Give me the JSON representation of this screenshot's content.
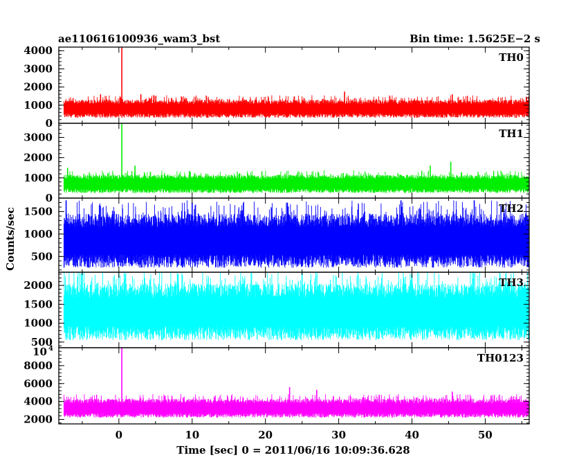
{
  "header": {
    "left": "ae110616100936_wam3_bst",
    "right": "Bin time: 1.5625E−2 s"
  },
  "ylabel": "Counts/sec",
  "xlabel": "Time [sec] 0 = 2011/06/16 10:09:36.628",
  "chart_data": {
    "type": "line",
    "x": {
      "min": -8.2,
      "max": 56.0,
      "ticks": [
        0,
        10,
        20,
        30,
        40,
        50
      ],
      "data_start": -7.5,
      "data_end": 56.0
    },
    "panels": [
      {
        "name": "TH0",
        "color": "#ff0000",
        "ylim": [
          0,
          4200
        ],
        "ticks": [
          0,
          1000,
          2000,
          3000,
          4000
        ],
        "baseline": 800,
        "low": 300,
        "high": 1300,
        "spikes": [
          [
            0.4,
            4200
          ],
          [
            3.0,
            1600
          ],
          [
            -2.5,
            1600
          ],
          [
            30.8,
            1750
          ],
          [
            45.5,
            1600
          ]
        ]
      },
      {
        "name": "TH1",
        "color": "#00ee00",
        "ylim": [
          0,
          3700
        ],
        "ticks": [
          0,
          1000,
          2000,
          3000
        ],
        "baseline": 700,
        "low": 250,
        "high": 1150,
        "spikes": [
          [
            0.4,
            3700
          ],
          [
            2.2,
            1600
          ],
          [
            -7.0,
            1500
          ],
          [
            42.5,
            1600
          ],
          [
            45.3,
            1800
          ]
        ]
      },
      {
        "name": "TH2",
        "color": "#0000ff",
        "ylim": [
          150,
          1800
        ],
        "ticks": [
          500,
          1000,
          1500
        ],
        "baseline": 800,
        "low": 250,
        "high": 1450,
        "spikes": [
          [
            -7.2,
            1750
          ],
          [
            10.0,
            1700
          ],
          [
            23.0,
            1700
          ],
          [
            38.5,
            1750
          ],
          [
            48.5,
            1750
          ]
        ]
      },
      {
        "name": "TH3",
        "color": "#00ffff",
        "ylim": [
          350,
          2350
        ],
        "ticks": [
          500,
          1000,
          1500,
          2000
        ],
        "baseline": 1250,
        "low": 550,
        "high": 2050,
        "spikes": [
          [
            -5.0,
            2330
          ],
          [
            8.0,
            2320
          ],
          [
            25.0,
            2330
          ],
          [
            40.0,
            2320
          ],
          [
            52.0,
            2330
          ]
        ]
      },
      {
        "name": "TH0123",
        "color": "#ff00ff",
        "ylim": [
          1500,
          10000
        ],
        "ticks": [
          2000,
          4000,
          6000,
          8000
        ],
        "top_label": "10",
        "top_label_exp": "4",
        "baseline": 3200,
        "low": 2200,
        "high": 4300,
        "spikes": [
          [
            0.4,
            10000
          ],
          [
            23.3,
            5600
          ],
          [
            27.0,
            5300
          ],
          [
            45.5,
            5100
          ]
        ]
      }
    ]
  }
}
